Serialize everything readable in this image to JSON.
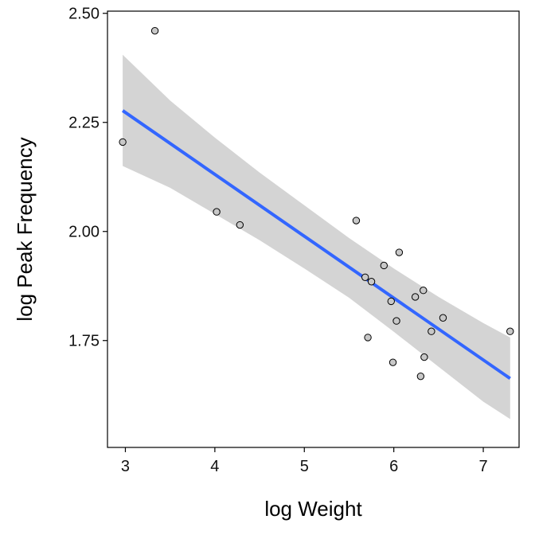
{
  "chart_data": {
    "type": "scatter",
    "title": "",
    "xlabel": "log Weight",
    "ylabel": "log Peak Frequency",
    "xlim": [
      2.8,
      7.4
    ],
    "ylim": [
      1.505,
      2.505
    ],
    "x_ticks": [
      3,
      4,
      5,
      6,
      7
    ],
    "x_tick_labels": [
      "3",
      "4",
      "5",
      "6",
      "7"
    ],
    "y_ticks": [
      1.75,
      2.0,
      2.25,
      2.5
    ],
    "y_tick_labels": [
      "1.75",
      "2.00",
      "2.25",
      "2.50"
    ],
    "grid": false,
    "legend": "none",
    "points": [
      {
        "x": 2.97,
        "y": 2.205
      },
      {
        "x": 3.33,
        "y": 2.46
      },
      {
        "x": 4.02,
        "y": 2.045
      },
      {
        "x": 4.28,
        "y": 2.015
      },
      {
        "x": 5.58,
        "y": 2.025
      },
      {
        "x": 5.68,
        "y": 1.895
      },
      {
        "x": 5.71,
        "y": 1.757
      },
      {
        "x": 5.75,
        "y": 1.885
      },
      {
        "x": 5.89,
        "y": 1.922
      },
      {
        "x": 5.97,
        "y": 1.84
      },
      {
        "x": 5.99,
        "y": 1.7
      },
      {
        "x": 6.03,
        "y": 1.795
      },
      {
        "x": 6.06,
        "y": 1.952
      },
      {
        "x": 6.24,
        "y": 1.85
      },
      {
        "x": 6.3,
        "y": 1.668
      },
      {
        "x": 6.33,
        "y": 1.865
      },
      {
        "x": 6.34,
        "y": 1.712
      },
      {
        "x": 6.42,
        "y": 1.771
      },
      {
        "x": 6.55,
        "y": 1.802
      },
      {
        "x": 7.3,
        "y": 1.771
      }
    ],
    "fit_line": {
      "x": [
        2.97,
        7.3
      ],
      "y": [
        2.277,
        1.663
      ]
    },
    "confidence_band": {
      "x": [
        2.97,
        3.5,
        4.0,
        4.5,
        5.0,
        5.5,
        6.0,
        6.5,
        7.0,
        7.3
      ],
      "upper": [
        2.405,
        2.3,
        2.215,
        2.135,
        2.06,
        1.985,
        1.915,
        1.85,
        1.79,
        1.757
      ],
      "lower": [
        2.15,
        2.1,
        2.04,
        1.98,
        1.915,
        1.848,
        1.77,
        1.69,
        1.61,
        1.57
      ]
    },
    "colors": {
      "line": "#3366ff",
      "band": "#d4d4d4",
      "point_fill": "#c8c8c8",
      "point_stroke": "#000000",
      "axis": "#000000"
    }
  }
}
